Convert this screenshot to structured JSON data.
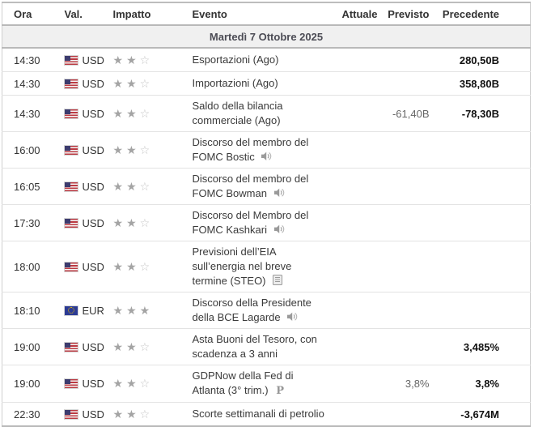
{
  "table": {
    "columns": {
      "ora": "Ora",
      "val": "Val.",
      "impatto": "Impatto",
      "evento": "Evento",
      "attuale": "Attuale",
      "previsto": "Previsto",
      "precedente": "Precedente"
    },
    "date_header": "Martedì 7 Ottobre 2025",
    "importance_max": 3,
    "rows": [
      {
        "time": "14:30",
        "currency": "USD",
        "flag": "us",
        "importance": 2,
        "event": "Esportazioni (Ago)",
        "icon": null,
        "actual": "",
        "forecast": "",
        "previous": "280,50B"
      },
      {
        "time": "14:30",
        "currency": "USD",
        "flag": "us",
        "importance": 2,
        "event": "Importazioni (Ago)",
        "icon": null,
        "actual": "",
        "forecast": "",
        "previous": "358,80B"
      },
      {
        "time": "14:30",
        "currency": "USD",
        "flag": "us",
        "importance": 2,
        "event": "Saldo della bilancia commerciale (Ago)",
        "icon": null,
        "actual": "",
        "forecast": "-61,40B",
        "previous": "-78,30B"
      },
      {
        "time": "16:00",
        "currency": "USD",
        "flag": "us",
        "importance": 2,
        "event": "Discorso del membro del FOMC Bostic",
        "icon": "speaker",
        "actual": "",
        "forecast": "",
        "previous": ""
      },
      {
        "time": "16:05",
        "currency": "USD",
        "flag": "us",
        "importance": 2,
        "event": "Discorso del membro del FOMC Bowman",
        "icon": "speaker",
        "actual": "",
        "forecast": "",
        "previous": ""
      },
      {
        "time": "17:30",
        "currency": "USD",
        "flag": "us",
        "importance": 2,
        "event": "Discorso del Membro del FOMC Kashkari",
        "icon": "speaker",
        "actual": "",
        "forecast": "",
        "previous": ""
      },
      {
        "time": "18:00",
        "currency": "USD",
        "flag": "us",
        "importance": 2,
        "event": "Previsioni dell’EIA sull’energia nel breve termine (STEO)",
        "icon": "report",
        "actual": "",
        "forecast": "",
        "previous": ""
      },
      {
        "time": "18:10",
        "currency": "EUR",
        "flag": "eu",
        "importance": 3,
        "event": "Discorso della Presidente della BCE Lagarde",
        "icon": "speaker",
        "actual": "",
        "forecast": "",
        "previous": ""
      },
      {
        "time": "19:00",
        "currency": "USD",
        "flag": "us",
        "importance": 2,
        "event": "Asta Buoni del Tesoro, con scadenza a 3 anni",
        "icon": null,
        "actual": "",
        "forecast": "",
        "previous": "3,485%"
      },
      {
        "time": "19:00",
        "currency": "USD",
        "flag": "us",
        "importance": 2,
        "event": "GDPNow della Fed di Atlanta (3° trim.)",
        "icon": "preliminary",
        "actual": "",
        "forecast": "3,8%",
        "previous": "3,8%"
      },
      {
        "time": "22:30",
        "currency": "USD",
        "flag": "us",
        "importance": 2,
        "event": "Scorte settimanali di petrolio",
        "icon": null,
        "actual": "",
        "forecast": "",
        "previous": "-3,674M"
      }
    ],
    "colors": {
      "star_filled": "#a4a4a4",
      "star_empty": "#c6c6c6",
      "date_row_bg": "#f0f0f0",
      "forecast_text": "#666666",
      "previous_text": "#111111",
      "border": "#b9b9b9"
    }
  }
}
